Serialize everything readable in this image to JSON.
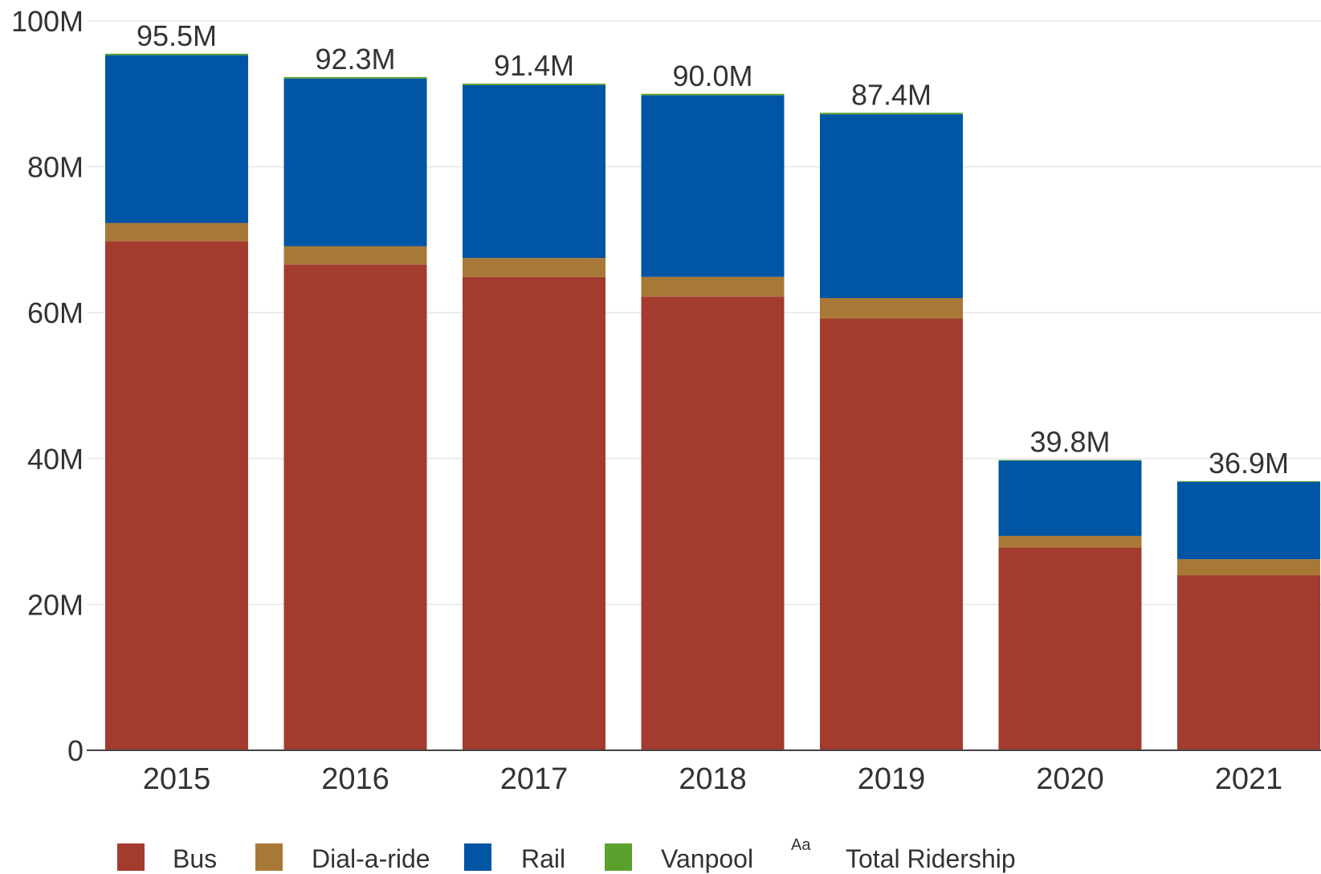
{
  "chart_data": {
    "type": "bar",
    "stacked": true,
    "categories": [
      "2015",
      "2016",
      "2017",
      "2018",
      "2019",
      "2020",
      "2021"
    ],
    "series": [
      {
        "name": "Bus",
        "color": "#a33b2f",
        "values": [
          69.8,
          66.6,
          64.9,
          62.2,
          59.2,
          27.8,
          24.0
        ]
      },
      {
        "name": "Dial-a-ride",
        "color": "#a87936",
        "values": [
          2.5,
          2.5,
          2.6,
          2.7,
          2.8,
          1.6,
          2.2
        ]
      },
      {
        "name": "Rail",
        "color": "#0055a5",
        "values": [
          23.0,
          23.0,
          23.7,
          24.9,
          25.2,
          10.3,
          10.6
        ]
      },
      {
        "name": "Vanpool",
        "color": "#5aa02c",
        "values": [
          0.2,
          0.2,
          0.2,
          0.2,
          0.2,
          0.1,
          0.1
        ]
      }
    ],
    "totals": {
      "name": "Total Ridership",
      "labels": [
        "95.5M",
        "92.3M",
        "91.4M",
        "90.0M",
        "87.4M",
        "39.8M",
        "36.9M"
      ]
    },
    "y_ticks": [
      {
        "value": 0,
        "label": "0"
      },
      {
        "value": 20,
        "label": "20M"
      },
      {
        "value": 40,
        "label": "40M"
      },
      {
        "value": 60,
        "label": "60M"
      },
      {
        "value": 80,
        "label": "80M"
      },
      {
        "value": 100,
        "label": "100M"
      }
    ],
    "ylim": [
      0,
      100
    ],
    "grid": true,
    "legend": {
      "position": "bottom-left",
      "items": [
        {
          "label": "Bus",
          "color": "#a33b2f",
          "icon": "swatch"
        },
        {
          "label": "Dial-a-ride",
          "color": "#a87936",
          "icon": "swatch"
        },
        {
          "label": "Rail",
          "color": "#0055a5",
          "icon": "swatch"
        },
        {
          "label": "Vanpool",
          "color": "#5aa02c",
          "icon": "swatch"
        },
        {
          "label": "Total Ridership",
          "icon": "text-label-icon",
          "glyph": "Aa"
        }
      ]
    }
  }
}
